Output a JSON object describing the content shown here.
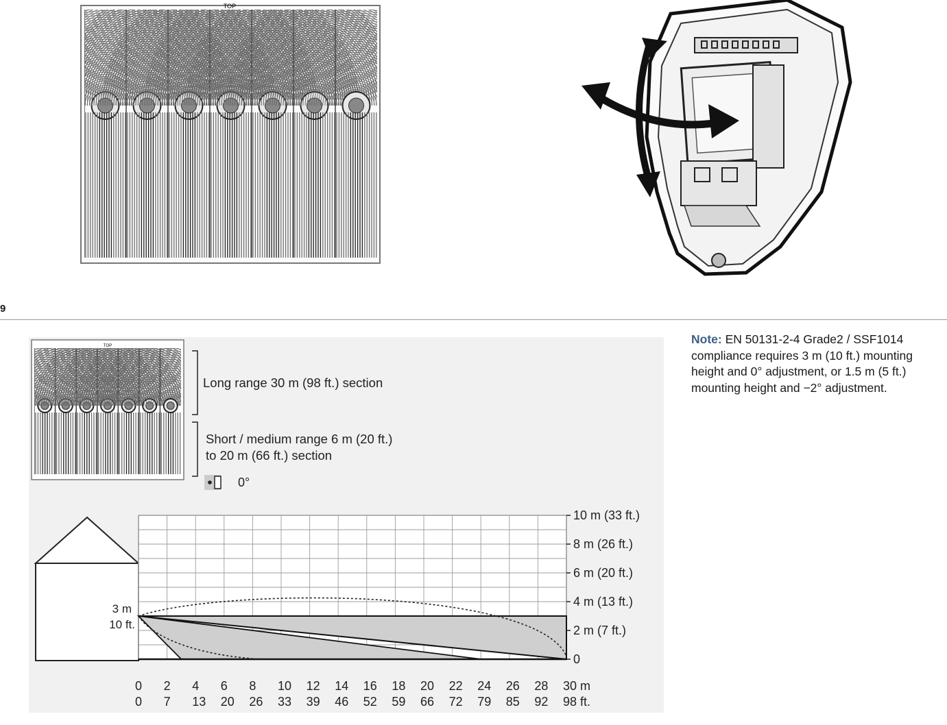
{
  "figure_label": "9",
  "lens_top_label": "TOP",
  "lens_small_top_label": "TOP",
  "legend": {
    "long_range": "Long range 30 m (98 ft.) section",
    "short_range_line1": "Short / medium range 6 m (20 ft.)",
    "short_range_line2": "to 20 m (66 ft.) section",
    "angle": "0°"
  },
  "mount": {
    "height_m": "3 m",
    "height_ft": "10 ft."
  },
  "right_axis_labels": [
    "10 m (33 ft.)",
    "8 m (26 ft.)",
    "6 m (20 ft.)",
    "4 m (13 ft.)",
    "2 m (7 ft.)",
    "0"
  ],
  "bottom_axis_m": [
    "0",
    "2",
    "4",
    "6",
    "8",
    "10",
    "12",
    "14",
    "16",
    "18",
    "20",
    "22",
    "24",
    "26",
    "28",
    "30 m"
  ],
  "bottom_axis_ft": [
    "0",
    "7",
    "13",
    "20",
    "26",
    "33",
    "39",
    "46",
    "52",
    "59",
    "66",
    "72",
    "79",
    "85",
    "92",
    "98 ft."
  ],
  "note": {
    "label": "Note:",
    "text": " EN 50131-2-4 Grade2 / SSF1014 compliance requires 3 m (10 ft.) mounting height and 0° adjustment, or 1.5 m (5 ft.) mounting height and −2° adjustment."
  },
  "colors": {
    "accent": "#3b5f86",
    "panel": "#f1f1f1",
    "zone_fill": "#cfcfcf",
    "grid": "#9c9c9c"
  }
}
